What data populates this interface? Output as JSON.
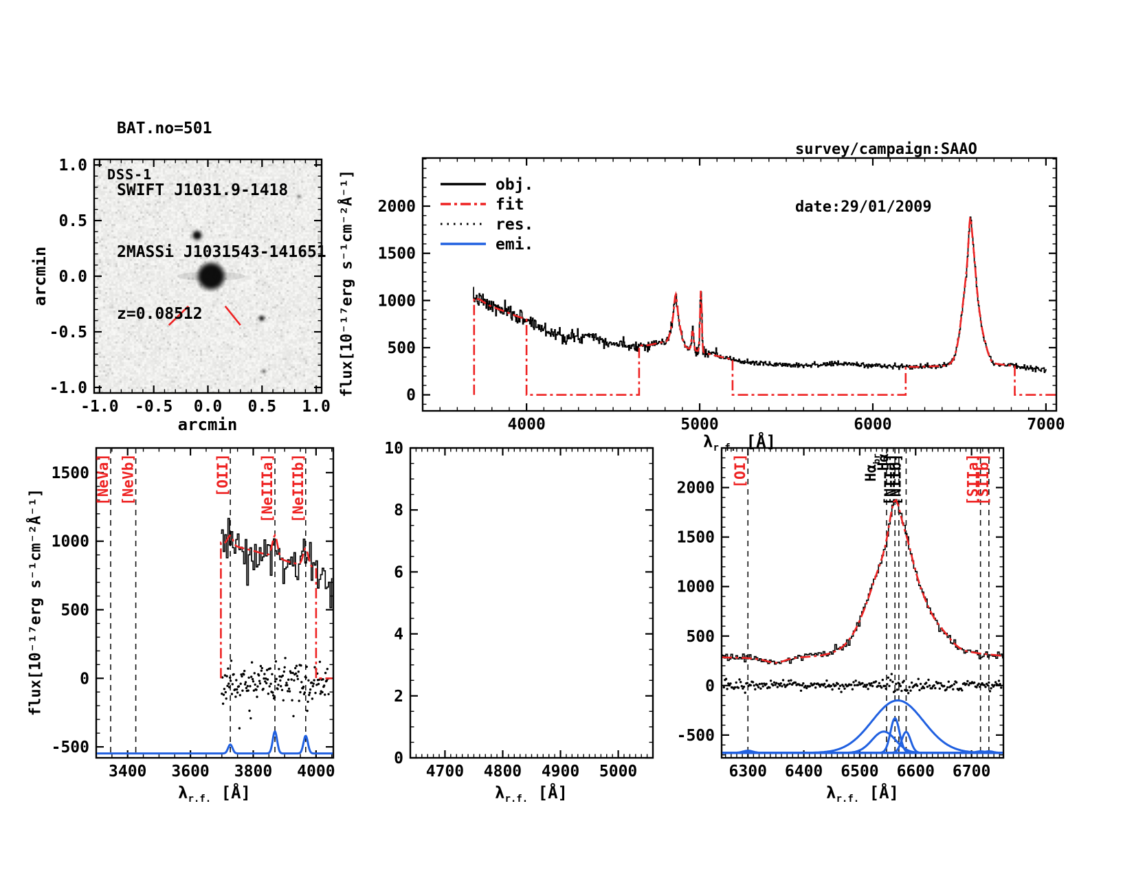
{
  "title_block": {
    "line1": "BAT.no=501",
    "line2": "SWIFT J1031.9-1418",
    "line3": "2MASSi J1031543-141651",
    "line4": "z=0.08512"
  },
  "info_block": {
    "line1": "survey/campaign:SAAO",
    "line2": "date:29/01/2009"
  },
  "labels": {
    "flux_axis": "flux[10⁻¹⁷erg s⁻¹cm⁻²Å⁻¹]",
    "lambda": "λ",
    "lambda_sub": "r.f.",
    "lambda_unit": " [Å]",
    "arcmin": "arcmin",
    "dss": "DSS-1"
  },
  "colors": {
    "fit_red": "#ee2222",
    "emission_blue": "#2060e0",
    "black": "#000000",
    "marker_red": "#ee2222",
    "dss_bg": "#eae9e6"
  },
  "legend": [
    {
      "label": "obj.",
      "style": "solid",
      "color": "#000000"
    },
    {
      "label": "fit",
      "style": "dashdot",
      "color": "#ee2222"
    },
    {
      "label": "res.",
      "style": "dotted",
      "color": "#000000"
    },
    {
      "label": "emi.",
      "style": "solid",
      "color": "#2060e0"
    }
  ],
  "chart_data": [
    {
      "id": "dss",
      "type": "heatmap",
      "title": "DSS-1",
      "xlabel": "arcmin",
      "ylabel": "arcmin",
      "xlim": [
        -1.05,
        1.05
      ],
      "ylim": [
        -1.05,
        1.05
      ],
      "xticks": [
        -1.0,
        -0.5,
        0.0,
        0.5,
        1.0
      ],
      "yticks": [
        -1.0,
        -0.5,
        0.0,
        0.5,
        1.0
      ],
      "xminor": 0.1,
      "yminor": 0.1,
      "tick_format": "fixed1",
      "sources": [
        {
          "x": 0.03,
          "y": 0.0,
          "r": 0.15,
          "intensity": 1.7,
          "note": "target galaxy"
        },
        {
          "x": -0.1,
          "y": 0.37,
          "r": 0.07,
          "intensity": 0.75
        },
        {
          "x": 0.5,
          "y": -0.38,
          "r": 0.05,
          "intensity": 0.5
        },
        {
          "x": 0.52,
          "y": -0.86,
          "r": 0.04,
          "intensity": 0.28
        },
        {
          "x": 0.85,
          "y": 0.72,
          "r": 0.04,
          "intensity": 0.22
        }
      ],
      "marker_lines": [
        [
          -0.36,
          -0.44,
          -0.18,
          -0.27
        ],
        [
          0.16,
          -0.27,
          0.3,
          -0.44
        ]
      ]
    },
    {
      "id": "tr",
      "type": "line",
      "xlabel": "λ_r.f. [Å]",
      "ylabel": "flux[10-17 erg s-1 cm-2 A-1]",
      "xlim": [
        3400,
        7060
      ],
      "ylim": [
        -170,
        2510
      ],
      "xticks": [
        4000,
        5000,
        6000,
        7000
      ],
      "yticks": [
        0,
        500,
        1000,
        1500,
        2000
      ],
      "xminor": 100,
      "yminor": 100,
      "legend_position": "top-left",
      "model": {
        "continuum": [
          [
            3690,
            1030
          ],
          [
            3730,
            1010
          ],
          [
            3780,
            950
          ],
          [
            3850,
            900
          ],
          [
            3950,
            830
          ],
          [
            4000,
            800
          ],
          [
            4080,
            710
          ],
          [
            4150,
            660
          ],
          [
            4250,
            610
          ],
          [
            4320,
            600
          ],
          [
            4360,
            660
          ],
          [
            4420,
            590
          ],
          [
            4500,
            545
          ],
          [
            4600,
            520
          ],
          [
            4700,
            525
          ],
          [
            4790,
            560
          ],
          [
            5060,
            430
          ],
          [
            5150,
            390
          ],
          [
            5250,
            350
          ],
          [
            5400,
            325
          ],
          [
            5600,
            315
          ],
          [
            5850,
            330
          ],
          [
            5950,
            315
          ],
          [
            6150,
            300
          ],
          [
            6250,
            295
          ],
          [
            6450,
            310
          ],
          [
            6700,
            330
          ],
          [
            6800,
            310
          ],
          [
            6900,
            285
          ],
          [
            7000,
            265
          ]
        ],
        "gaussians": [
          [
            4863,
            22,
            380
          ],
          [
            4861,
            7,
            160
          ],
          [
            4959,
            6,
            200
          ],
          [
            5007,
            5,
            660
          ],
          [
            6565,
            42,
            1150
          ],
          [
            6563,
            9,
            400
          ],
          [
            6583,
            9,
            120
          ],
          [
            6650,
            18,
            80
          ]
        ]
      },
      "obj": {
        "range": [
          3692,
          7005
        ],
        "step": 4,
        "noise": [
          40,
          26,
          13
        ],
        "noise_breaks": [
          4300,
          5100
        ],
        "seed": 7
      },
      "fit": {
        "segments": [
          [
            3697,
            4000
          ],
          [
            4650,
            5190
          ],
          [
            6190,
            6820
          ]
        ],
        "zero_tail": 7055,
        "lead_vertical": true
      }
    },
    {
      "id": "bl",
      "type": "line",
      "xlabel": "λ_r.f. [Å]",
      "ylabel": "flux[10-17 erg s-1 cm-2 A-1]",
      "xlim": [
        3300,
        4055
      ],
      "ylim": [
        -580,
        1680
      ],
      "xticks": [
        3400,
        3600,
        3800,
        4000
      ],
      "yticks": [
        -500,
        0,
        500,
        1000,
        1500
      ],
      "xminor": 50,
      "yminor": 100,
      "lines": [
        {
          "name": "[NeVa]",
          "wl": 3346,
          "color": "red"
        },
        {
          "name": "[NeVb]",
          "wl": 3426,
          "color": "red"
        },
        {
          "name": "[OII]",
          "wl": 3727,
          "color": "red"
        },
        {
          "name": "[NeIIIa]",
          "wl": 3869,
          "color": "red"
        },
        {
          "name": "[NeIIIb]",
          "wl": 3967,
          "color": "red"
        }
      ],
      "model": {
        "continuum": [
          [
            3697,
            990
          ],
          [
            3740,
            965
          ],
          [
            3800,
            930
          ],
          [
            3860,
            890
          ],
          [
            3920,
            845
          ],
          [
            3970,
            820
          ],
          [
            4055,
            755
          ]
        ],
        "gaussians": [
          [
            3727,
            8,
            70
          ],
          [
            3869,
            8,
            160
          ],
          [
            3967,
            8,
            128
          ]
        ]
      },
      "obj": {
        "range": [
          3697,
          4052
        ],
        "step": 5,
        "noise": [
          85
        ],
        "noise_breaks": [],
        "seed": 3
      },
      "fit": {
        "segments": [
          [
            3697,
            4000
          ]
        ],
        "zero_tail": 4052,
        "lead_vertical": true
      },
      "res": {
        "range": [
          3700,
          4040
        ],
        "step": 2,
        "mean": -35,
        "std": 68,
        "seed": 11
      },
      "emi": {
        "baseline": -548,
        "split": false,
        "components": [
          [
            3727,
            7,
            65
          ],
          [
            3869,
            7,
            160
          ],
          [
            3967,
            7,
            128
          ]
        ]
      }
    },
    {
      "id": "bm",
      "type": "line",
      "empty": true,
      "xlabel": "λ_r.f. [Å]",
      "ylabel": "",
      "xlim": [
        4640,
        5060
      ],
      "ylim": [
        0,
        10
      ],
      "xticks": [
        4700,
        4800,
        4900,
        5000
      ],
      "yticks": [
        0,
        2,
        4,
        6,
        8,
        10
      ],
      "xminor": 10,
      "yminor": 0.5
    },
    {
      "id": "br",
      "type": "line",
      "xlabel": "λ_r.f. [Å]",
      "ylabel": "",
      "xlim": [
        6253,
        6757
      ],
      "ylim": [
        -730,
        2400
      ],
      "xticks": [
        6300,
        6400,
        6500,
        6600,
        6700
      ],
      "yticks": [
        -500,
        0,
        500,
        1000,
        1500,
        2000
      ],
      "xminor": 10,
      "yminor": 100,
      "lines": [
        {
          "name": "[OI]",
          "wl": 6300,
          "color": "red"
        },
        {
          "name": "Hα",
          "sub": "br",
          "wl": 6570,
          "color": "black",
          "dx": -34
        },
        {
          "name": "Hα",
          "wl": 6563,
          "color": "black",
          "dx": -10
        },
        {
          "name": "[NIIa]",
          "wl": 6548,
          "color": "black",
          "dx": 12
        },
        {
          "name": "[NIIb]",
          "wl": 6583,
          "color": "black",
          "dx": -8
        },
        {
          "name": "[SIIa]",
          "wl": 6716,
          "color": "red"
        },
        {
          "name": "[SIIb]",
          "wl": 6731,
          "color": "red",
          "dx": -1
        }
      ],
      "model": {
        "continuum": [
          [
            6253,
            285
          ],
          [
            6290,
            280
          ],
          [
            6320,
            270
          ],
          [
            6380,
            280
          ],
          [
            6450,
            305
          ],
          [
            6700,
            330
          ],
          [
            6757,
            300
          ]
        ],
        "gaussians": [
          [
            6565,
            42,
            1150
          ],
          [
            6563,
            9,
            400
          ],
          [
            6583,
            9,
            120
          ],
          [
            6650,
            18,
            80
          ],
          [
            6350,
            15,
            -45
          ]
        ]
      },
      "obj": {
        "range": [
          6253,
          6757
        ],
        "step": 3,
        "noise": [
          22
        ],
        "noise_breaks": [],
        "seed": 9
      },
      "fit": {
        "segments": [
          [
            6253,
            6757
          ]
        ],
        "zero_tail": null,
        "lead_vertical": false
      },
      "res": {
        "range": [
          6257,
          6753
        ],
        "step": 2,
        "mean": 0,
        "std": 26,
        "seed": 13
      },
      "emi": {
        "baseline": -680,
        "split": true,
        "components": [
          [
            6568,
            46,
            530
          ],
          [
            6543,
            21,
            215
          ],
          [
            6563,
            8,
            350
          ],
          [
            6583,
            8,
            212
          ],
          [
            6300,
            9,
            22
          ],
          [
            6716,
            8,
            16
          ],
          [
            6731,
            8,
            16
          ]
        ]
      }
    }
  ]
}
